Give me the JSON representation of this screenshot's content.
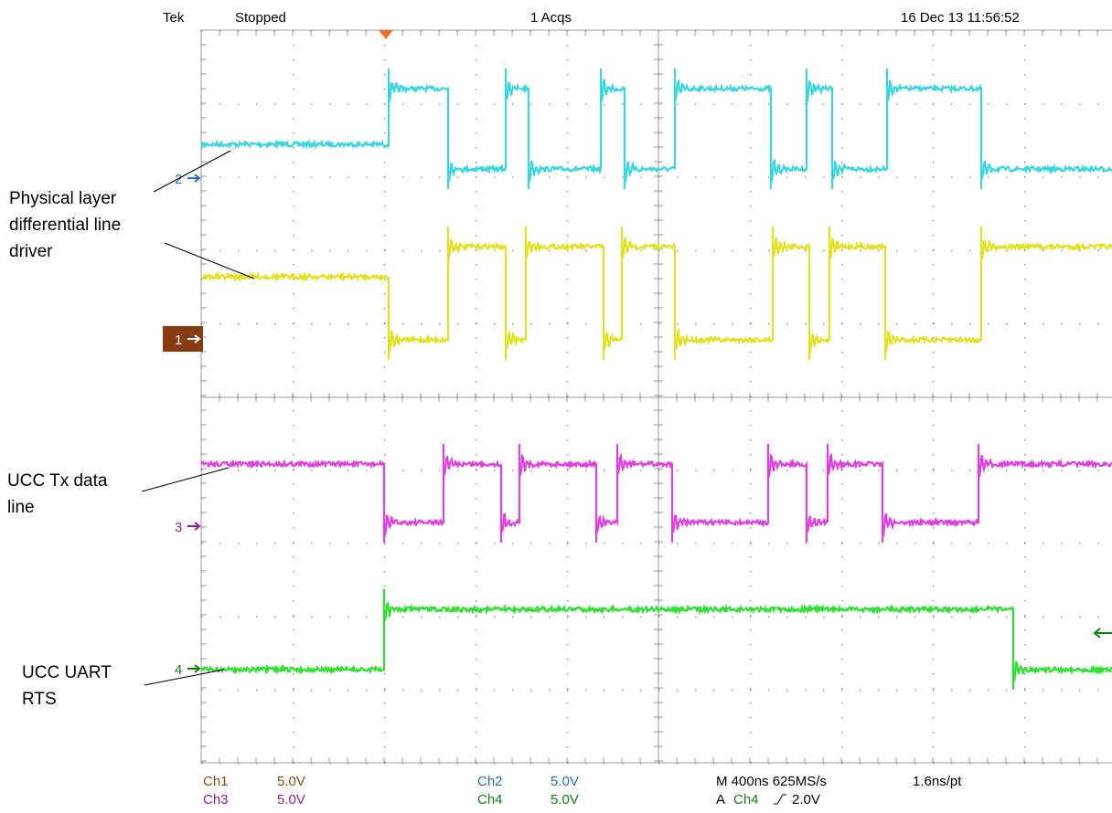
{
  "header": {
    "brand": "Tek",
    "status": "Stopped",
    "acquisitions": "1 Acqs",
    "timestamp": "16 Dec 13 11:56:52"
  },
  "channel_markers": {
    "ch1": "1",
    "ch2": "2",
    "ch3": "3",
    "ch4": "4"
  },
  "annotations": {
    "line_driver": [
      "Physical layer",
      "differential line",
      "driver"
    ],
    "tx_data": [
      "UCC Tx data",
      "line"
    ],
    "uart_rts": [
      "UCC UART",
      "RTS"
    ]
  },
  "footer": {
    "ch1": {
      "name": "Ch1",
      "scale": "5.0V"
    },
    "ch2": {
      "name": "Ch2",
      "scale": "5.0V"
    },
    "ch3": {
      "name": "Ch3",
      "scale": "5.0V"
    },
    "ch4": {
      "name": "Ch4",
      "scale": "5.0V"
    },
    "timebase": "M 400ns 625MS/s",
    "resolution": "1.6ns/pt",
    "trigger": {
      "prefix": "A",
      "source": "Ch4",
      "level": "2.0V"
    }
  }
}
